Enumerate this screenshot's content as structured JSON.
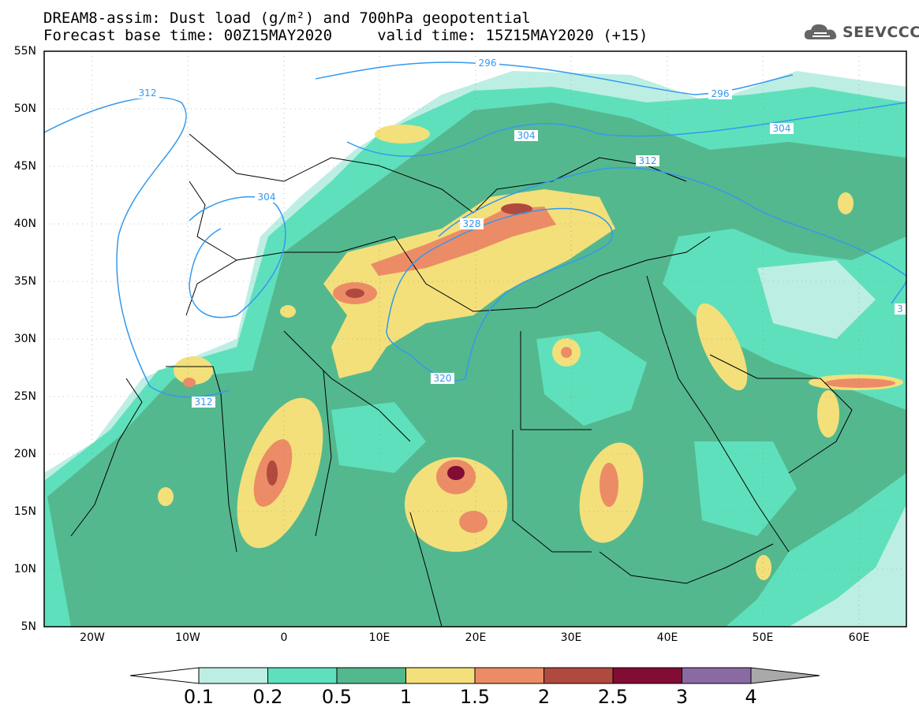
{
  "title": {
    "line1": "DREAM8-assim: Dust load (g/m²) and 700hPa geopotential",
    "line2": "Forecast base time: 00Z15MAY2020     valid time: 15Z15MAY2020 (+15)"
  },
  "logo": {
    "text": "SEEVCCC",
    "icon": "cloud-logo-icon"
  },
  "axes": {
    "lat_labels": [
      "55N",
      "50N",
      "45N",
      "40N",
      "35N",
      "30N",
      "25N",
      "20N",
      "15N",
      "10N",
      "5N"
    ],
    "lon_labels": [
      "20W",
      "10W",
      "0",
      "10E",
      "20E",
      "30E",
      "40E",
      "50E",
      "60E"
    ],
    "lat_range": [
      5,
      55
    ],
    "lon_range": [
      -25,
      65
    ],
    "grid": "dotted"
  },
  "contour_labels": [
    "296",
    "296",
    "304",
    "304",
    "304",
    "312",
    "312",
    "312",
    "312",
    "320",
    "328",
    "3"
  ],
  "colorbar": {
    "labels": [
      "0.1",
      "0.2",
      "0.5",
      "1",
      "1.5",
      "2",
      "2.5",
      "3",
      "4"
    ],
    "colors": [
      "#bdeee4",
      "#5fe0bc",
      "#54b88e",
      "#f3e07b",
      "#ec8c66",
      "#b04a3f",
      "#810d35",
      "#8a6aa3"
    ],
    "under_color": "#ffffff",
    "over_color": "#a9a9a9"
  },
  "colors": {
    "contour": "#3399ee",
    "border": "#000000"
  }
}
